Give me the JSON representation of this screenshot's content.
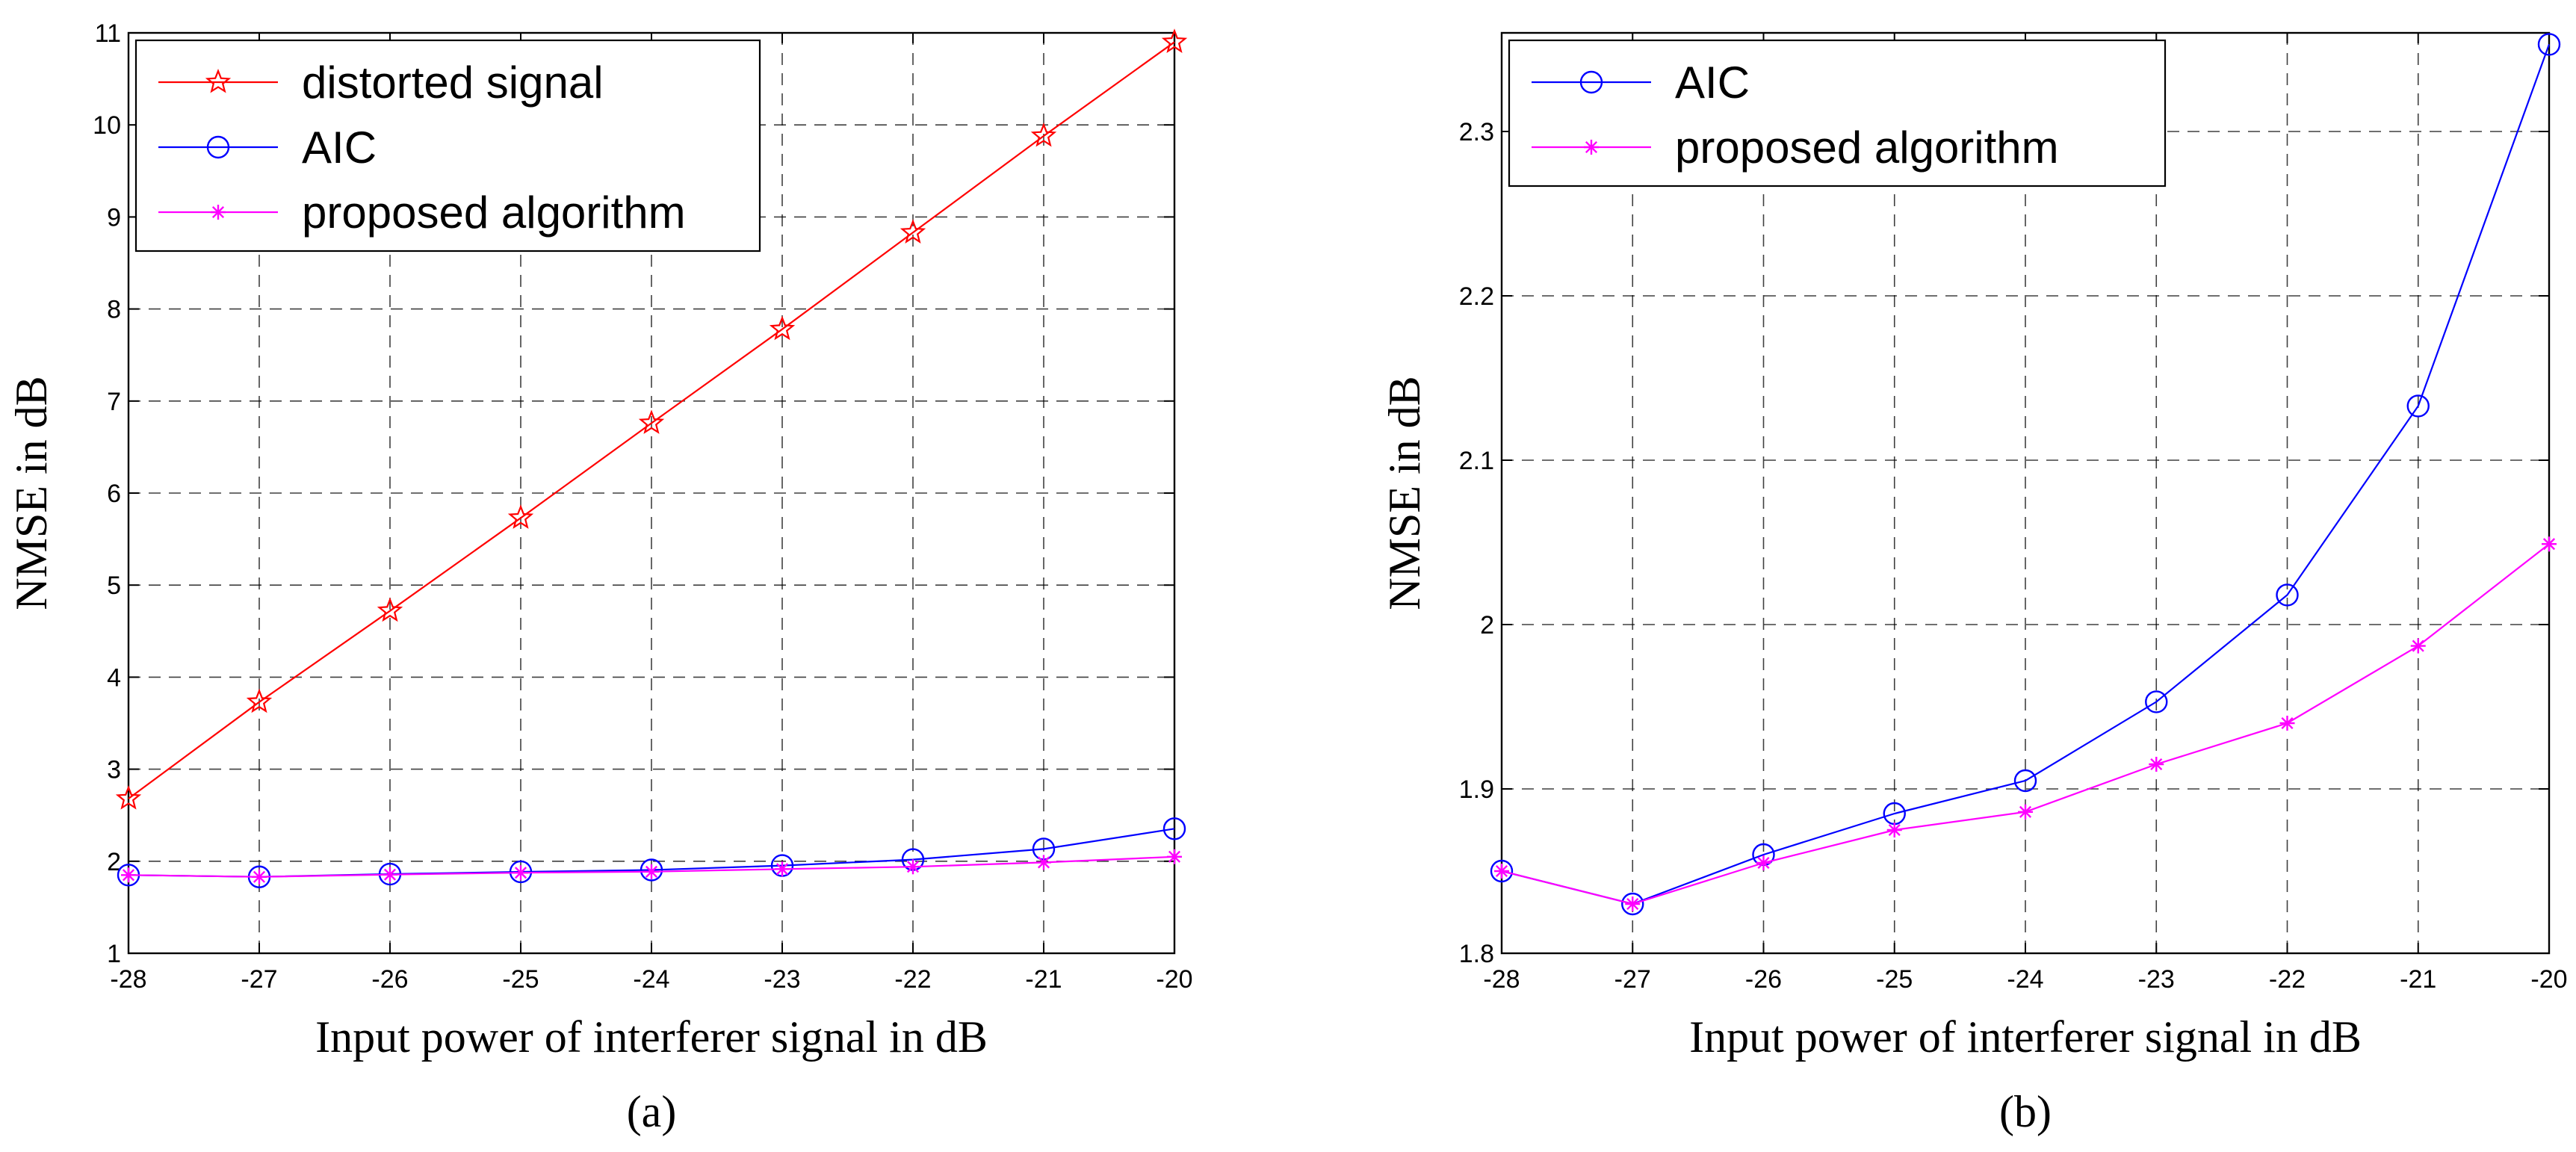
{
  "chart_data": [
    {
      "type": "line",
      "caption": "(a)",
      "xlabel": "Input power of interferer signal in dB",
      "ylabel": "NMSE in dB",
      "xlim": [
        -28,
        -20
      ],
      "ylim": [
        1,
        11
      ],
      "x": [
        -28,
        -27,
        -26,
        -25,
        -24,
        -23,
        -22,
        -21,
        -20
      ],
      "xticks": [
        "-28",
        "-27",
        "-26",
        "-25",
        "-24",
        "-23",
        "-22",
        "-21",
        "-20"
      ],
      "yticks": [
        "1",
        "2",
        "3",
        "4",
        "5",
        "6",
        "7",
        "8",
        "9",
        "10",
        "11"
      ],
      "yticks_values": [
        1,
        2,
        3,
        4,
        5,
        6,
        7,
        8,
        9,
        10,
        11
      ],
      "grid": true,
      "legend_position": "top-left",
      "series": [
        {
          "name": "distorted signal",
          "color": "#ff0000",
          "marker": "star",
          "values": [
            2.68,
            3.73,
            4.72,
            5.73,
            6.76,
            7.78,
            8.83,
            9.88,
            10.9
          ]
        },
        {
          "name": "AIC",
          "color": "#0000ff",
          "marker": "circle",
          "values": [
            1.85,
            1.83,
            1.86,
            1.885,
            1.905,
            1.953,
            2.018,
            2.133,
            2.353
          ]
        },
        {
          "name": "proposed algorithm",
          "color": "#ff00ff",
          "marker": "asterisk",
          "values": [
            1.85,
            1.83,
            1.855,
            1.875,
            1.886,
            1.915,
            1.94,
            1.987,
            2.049
          ]
        }
      ]
    },
    {
      "type": "line",
      "caption": "(b)",
      "xlabel": "Input power of interferer signal in dB",
      "ylabel": "NMSE in dB",
      "xlim": [
        -28,
        -20
      ],
      "ylim": [
        1.8,
        2.36
      ],
      "x": [
        -28,
        -27,
        -26,
        -25,
        -24,
        -23,
        -22,
        -21,
        -20
      ],
      "xticks": [
        "-28",
        "-27",
        "-26",
        "-25",
        "-24",
        "-23",
        "-22",
        "-21",
        "-20"
      ],
      "yticks": [
        "1.8",
        "1.9",
        "2",
        "2.1",
        "2.2",
        "2.3"
      ],
      "yticks_values": [
        1.8,
        1.9,
        2.0,
        2.1,
        2.2,
        2.3
      ],
      "grid": true,
      "legend_position": "top-left",
      "series": [
        {
          "name": "AIC",
          "color": "#0000ff",
          "marker": "circle",
          "values": [
            1.85,
            1.83,
            1.86,
            1.885,
            1.905,
            1.953,
            2.018,
            2.133,
            2.353
          ]
        },
        {
          "name": "proposed algorithm",
          "color": "#ff00ff",
          "marker": "asterisk",
          "values": [
            1.85,
            1.83,
            1.855,
            1.875,
            1.886,
            1.915,
            1.94,
            1.987,
            2.049
          ]
        }
      ]
    }
  ]
}
